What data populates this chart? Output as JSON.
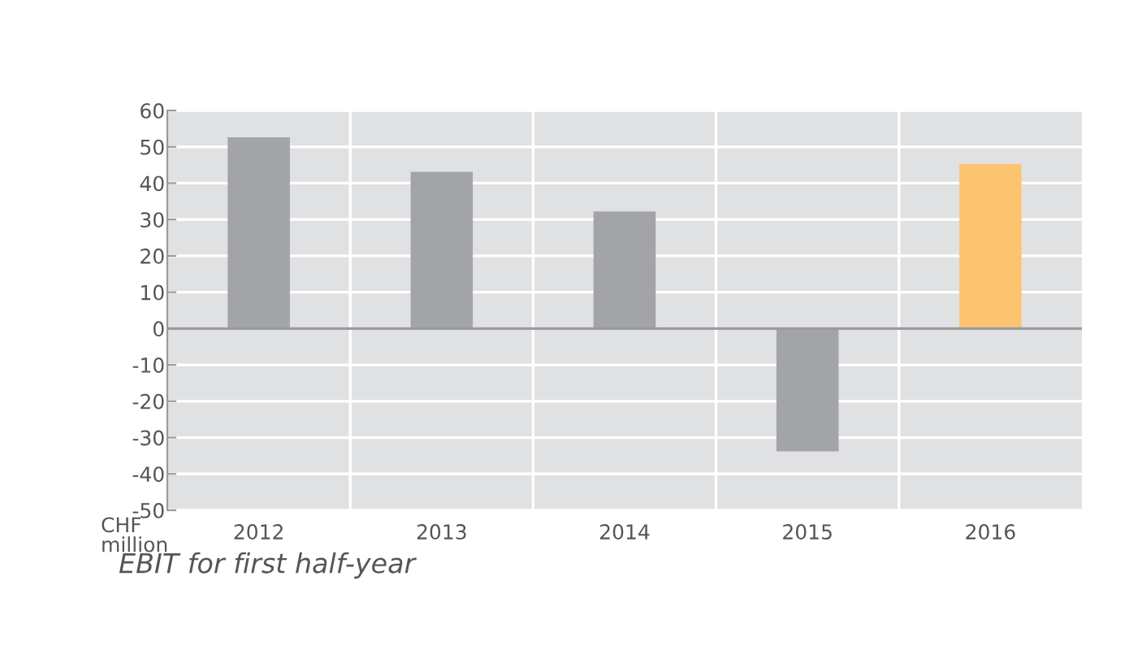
{
  "chart_data": {
    "type": "bar",
    "ylabel": "CHF\nmillion",
    "annotations": [
      "EBIT for first half-year"
    ],
    "categories": [
      "2012",
      "2013",
      "2014",
      "2015",
      "2016"
    ],
    "values": [
      52.6,
      43.1,
      32.2,
      -33.8,
      45.3
    ],
    "colors": [
      "#a3a4a8",
      "#a3a4a8",
      "#a3a4a8",
      "#a3a4a8",
      "#fdc470"
    ],
    "ylim": [
      -50,
      60
    ],
    "yticks": [
      -50,
      -40,
      -30,
      -20,
      -10,
      0,
      10,
      20,
      30,
      40,
      50,
      60
    ],
    "grid": true,
    "ref_lines": [
      {
        "axis": "y",
        "value": 0,
        "color": "#9a9ba0"
      }
    ]
  }
}
